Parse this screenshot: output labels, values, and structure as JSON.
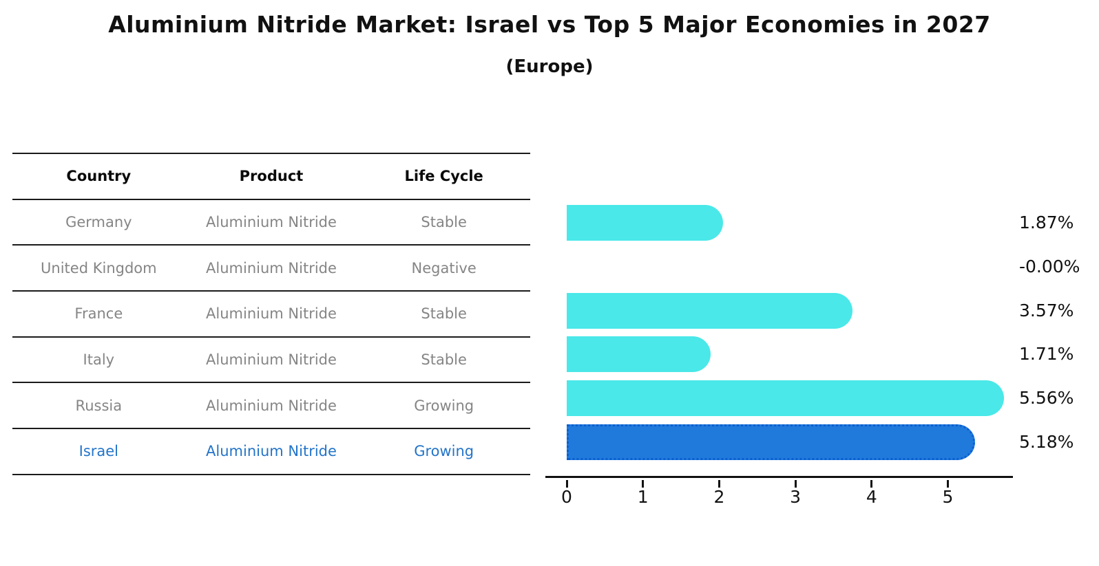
{
  "title": "Aluminium Nitride Market: Israel vs Top 5 Major Economies in 2027",
  "subtitle": "(Europe)",
  "table": {
    "headers": [
      "Country",
      "Product",
      "Life Cycle"
    ],
    "rows": [
      {
        "country": "Germany",
        "product": "Aluminium Nitride",
        "life_cycle": "Stable",
        "highlight": false
      },
      {
        "country": "United Kingdom",
        "product": "Aluminium Nitride",
        "life_cycle": "Negative",
        "highlight": false
      },
      {
        "country": "France",
        "product": "Aluminium Nitride",
        "life_cycle": "Stable",
        "highlight": false
      },
      {
        "country": "Italy",
        "product": "Aluminium Nitride",
        "life_cycle": "Stable",
        "highlight": false
      },
      {
        "country": "Russia",
        "product": "Aluminium Nitride",
        "life_cycle": "Growing",
        "highlight": false
      },
      {
        "country": "Israel",
        "product": "Aluminium Nitride",
        "life_cycle": "Growing",
        "highlight": true
      }
    ]
  },
  "chart_data": {
    "type": "bar",
    "orientation": "horizontal",
    "categories": [
      "Germany",
      "United Kingdom",
      "France",
      "Italy",
      "Russia",
      "Israel"
    ],
    "values": [
      1.87,
      -0.0,
      3.57,
      1.71,
      5.56,
      5.18
    ],
    "value_labels": [
      "1.87%",
      "-0.00%",
      "3.57%",
      "1.71%",
      "5.56%",
      "5.18%"
    ],
    "x_ticks": [
      "0",
      "1",
      "2",
      "3",
      "4",
      "5"
    ],
    "xlim": [
      0,
      5.85
    ],
    "xlabel": "",
    "ylabel": "",
    "grid": false,
    "legend": false,
    "highlight_index": 5,
    "bar_color": "#4AE8E8",
    "highlight_bar_color": "#1F7ADC",
    "highlight_border_color": "#0C5FD0",
    "label_color": "#111111",
    "highlight_text_color": "#2274C9",
    "muted_text_color": "#858585"
  }
}
